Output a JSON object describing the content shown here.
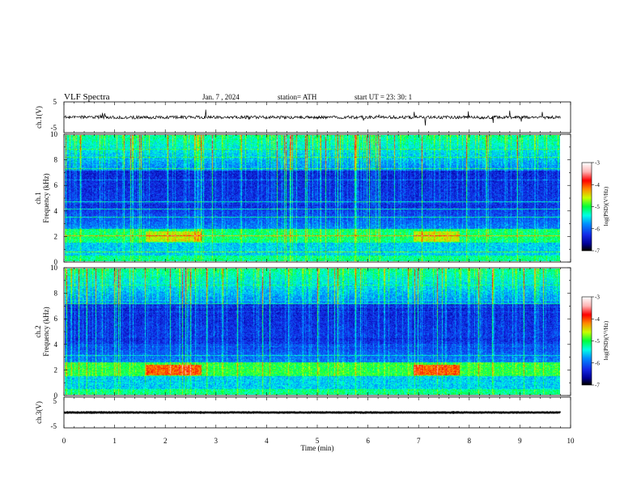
{
  "header": {
    "title": "VLF  Spectra",
    "date": "Jan.  7  , 2024",
    "station": "station= ATH",
    "start": "start  UT  =   23: 30: 1"
  },
  "colors": {
    "trace": "#000000",
    "colormap": [
      "#000000",
      "#0000cc",
      "#1e3cff",
      "#00a0ff",
      "#00ffe0",
      "#00ff40",
      "#c8ff00",
      "#ff8c00",
      "#ff0000",
      "#ffb4b4",
      "#ffffff"
    ]
  },
  "chart_data": [
    {
      "type": "line",
      "name": "ch1-waveform",
      "ylabel": "ch.1(V)",
      "ylim": [
        -5,
        5
      ],
      "yticks": [
        "5",
        "-5"
      ],
      "xlim": [
        0,
        10
      ],
      "level": 0,
      "noise_amplitude": 1.0
    },
    {
      "type": "heatmap",
      "name": "ch1-spectrogram",
      "ylabel": "ch.1\nFrequency  (kHz)",
      "ylim": [
        0,
        10
      ],
      "yticks": [
        "0",
        "2",
        "4",
        "6",
        "8",
        "10"
      ],
      "xlim": [
        0,
        9.8
      ],
      "colorbar": {
        "label": "log(PSD)(V²/Hz)",
        "range": [
          -7,
          -3
        ],
        "ticks": [
          "-3",
          "-4",
          "-5",
          "-6",
          "-7"
        ]
      },
      "bright_band_khz": [
        1.6,
        2.4
      ],
      "bright_band_peaks_min": [
        [
          1.6,
          2.7
        ],
        [
          6.9,
          7.8
        ]
      ]
    },
    {
      "type": "heatmap",
      "name": "ch2-spectrogram",
      "ylabel": "ch.2\nFrequency  (kHz)",
      "ylim": [
        0,
        10
      ],
      "yticks": [
        "0",
        "2",
        "4",
        "6",
        "8",
        "10"
      ],
      "xlim": [
        0,
        9.8
      ],
      "colorbar": {
        "label": "log(PSD)(V²/Hz)",
        "range": [
          -7,
          -3
        ],
        "ticks": [
          "-3",
          "-4",
          "-5",
          "-6",
          "-7"
        ]
      },
      "bright_band_khz": [
        1.6,
        2.4
      ],
      "bright_band_peaks_min": [
        [
          1.6,
          2.7
        ],
        [
          6.9,
          7.8
        ]
      ]
    },
    {
      "type": "line",
      "name": "ch3-waveform",
      "ylabel": "ch.3(V)",
      "ylim": [
        -5,
        5
      ],
      "yticks": [
        "5",
        "-5"
      ],
      "xlim": [
        0,
        10
      ],
      "level": 0,
      "noise_amplitude": 0.15
    }
  ],
  "xaxis": {
    "label": "Time  (min)",
    "range": [
      0,
      10
    ],
    "ticks": [
      "0",
      "1",
      "2",
      "3",
      "4",
      "5",
      "6",
      "7",
      "8",
      "9",
      "10"
    ]
  }
}
